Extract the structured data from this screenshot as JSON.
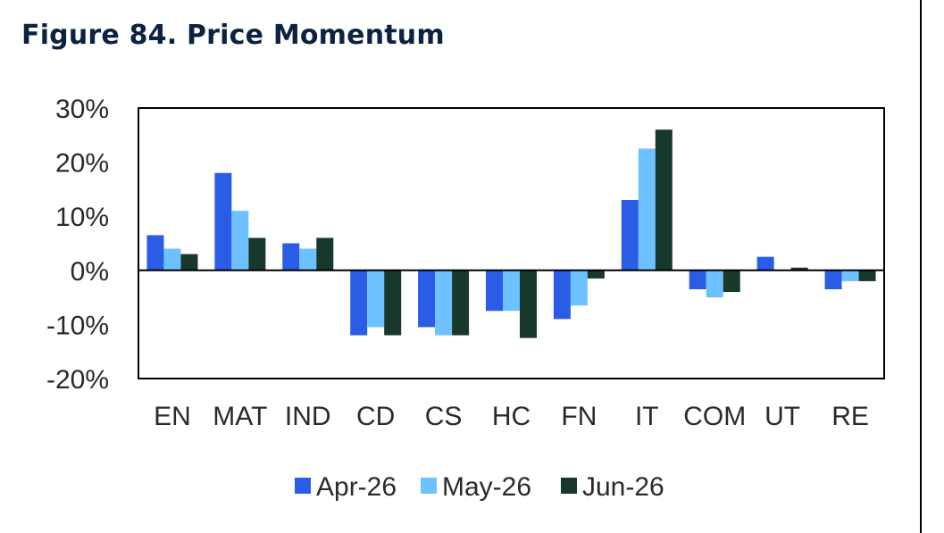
{
  "title": "Figure 84. Price Momentum",
  "chart_data": {
    "type": "bar",
    "categories": [
      "EN",
      "MAT",
      "IND",
      "CD",
      "CS",
      "HC",
      "FN",
      "IT",
      "COM",
      "UT",
      "RE"
    ],
    "series": [
      {
        "name": "Apr-26",
        "color": "#2b5ce6",
        "values": [
          6.5,
          18.0,
          5.0,
          -12.0,
          -10.5,
          -7.5,
          -9.0,
          13.0,
          -3.5,
          2.5,
          -3.5
        ]
      },
      {
        "name": "May-26",
        "color": "#6ec1ff",
        "values": [
          4.0,
          11.0,
          4.0,
          -10.5,
          -12.0,
          -7.5,
          -6.5,
          22.5,
          -5.0,
          0.0,
          -2.0
        ]
      },
      {
        "name": "Jun-26",
        "color": "#17382a",
        "values": [
          3.0,
          6.0,
          6.0,
          -12.0,
          -12.0,
          -12.5,
          -1.5,
          26.0,
          -4.0,
          0.5,
          -2.0
        ]
      }
    ],
    "yticks": [
      "30%",
      "20%",
      "10%",
      "0%",
      "-10%",
      "-20%"
    ],
    "ylim": [
      -20,
      30
    ],
    "grid": false,
    "legend": "bottom"
  }
}
